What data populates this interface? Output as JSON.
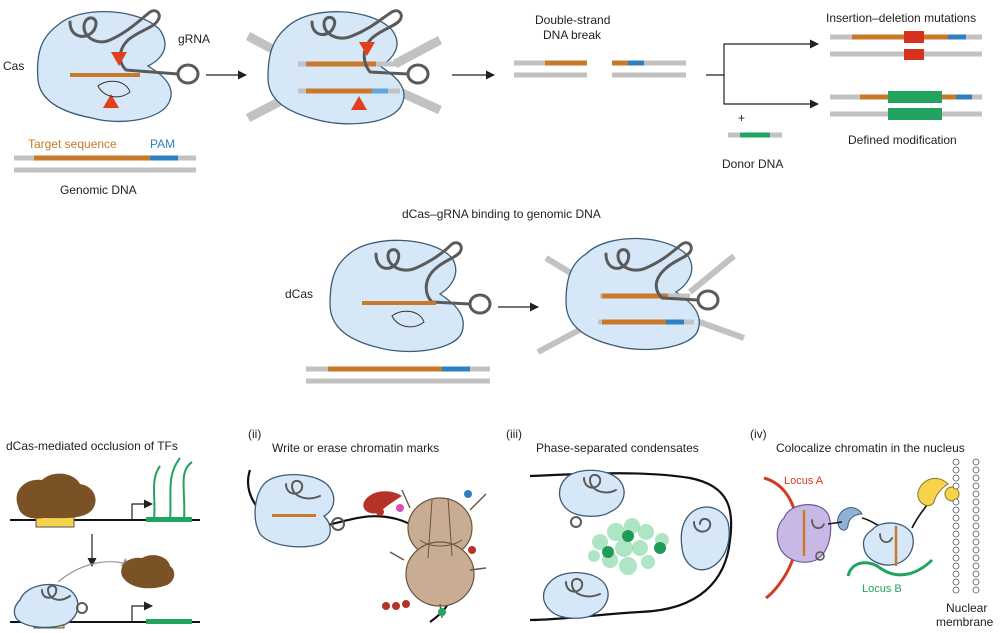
{
  "colors": {
    "cas_fill": "#d6e8f7",
    "target": "#c8792a",
    "pam": "#2f7fc1",
    "genomic": "#c2c2c2",
    "cut": "#e2401c",
    "indel": "#d6311e",
    "donor": "#22a360",
    "locus_a": "#d23b25",
    "locus_b": "#22a360",
    "tf": "#7a5226",
    "chromatin_mark": "#b6332a",
    "nucleosome": "#c9ad93"
  },
  "top": {
    "cas_label": "Cas",
    "grna_label": "gRNA",
    "target_sequence_label": "Target sequence",
    "pam_label": "PAM",
    "genomic_dna_label": "Genomic DNA",
    "dsb_label_line1": "Double-strand",
    "dsb_label_line2": "DNA break",
    "donor_plus": "+",
    "donor_label": "Donor DNA",
    "indel_label": "Insertion–deletion mutations",
    "defined_label": "Defined modification"
  },
  "middle": {
    "title": "dCas–gRNA binding to genomic DNA",
    "dcas_label": "dCas"
  },
  "bottom": {
    "panel1": {
      "title": "dCas-mediated occlusion of TFs"
    },
    "panel2": {
      "numeral": "(ii)",
      "title": "Write or erase chromatin marks"
    },
    "panel3": {
      "numeral": "(iii)",
      "title": "Phase-separated condensates"
    },
    "panel4": {
      "numeral": "(iv)",
      "title": "Colocalize chromatin in the nucleus",
      "locus_a": "Locus A",
      "locus_b": "Locus B",
      "membrane_line1": "Nuclear",
      "membrane_line2": "membrane"
    }
  }
}
